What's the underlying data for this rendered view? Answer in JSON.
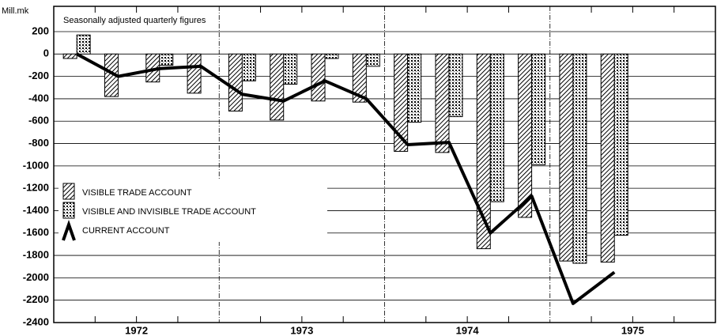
{
  "chart_data": {
    "type": "bar_line",
    "subtitle": "Seasonally adjusted quarterly figures",
    "y_unit": "Mill.mk",
    "groups": [
      "1972",
      "1973",
      "1974",
      "1975"
    ],
    "categories": [
      null,
      null,
      null,
      null,
      null,
      null,
      null,
      null,
      null,
      null,
      null,
      null,
      null,
      null
    ],
    "series": [
      {
        "name": "VISIBLE TRADE ACCOUNT",
        "kind": "bar",
        "pattern": "hatch",
        "color": "#000000",
        "values": [
          -40,
          -380,
          -250,
          -350,
          -510,
          -590,
          -420,
          -430,
          -870,
          -880,
          -1740,
          -1460,
          -1850,
          -1860
        ]
      },
      {
        "name": "VISIBLE AND INVISIBLE TRADE ACCOUNT",
        "kind": "bar",
        "pattern": "dots",
        "color": "#000000",
        "values": [
          170,
          null,
          -100,
          null,
          -240,
          -270,
          -40,
          -110,
          -610,
          -560,
          -1320,
          -990,
          -1870,
          -1620
        ]
      },
      {
        "name": "CURRENT ACCOUNT",
        "kind": "line",
        "color": "#000000",
        "values": [
          0,
          -200,
          -130,
          -110,
          -360,
          -420,
          -240,
          -400,
          -810,
          -790,
          -1600,
          -1270,
          -2230,
          -1950
        ]
      }
    ],
    "ylim": [
      -2400,
      200
    ],
    "yticks": [
      -2400,
      -2200,
      -2000,
      -1800,
      -1600,
      -1400,
      -1200,
      -1000,
      -800,
      -600,
      -400,
      -200,
      0,
      200
    ],
    "grid": true
  }
}
